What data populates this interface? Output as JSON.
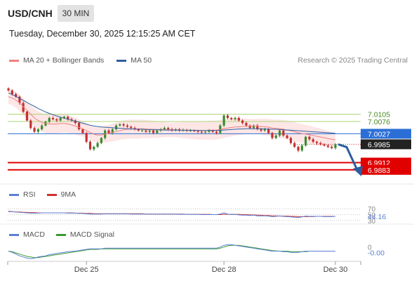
{
  "header": {
    "symbol": "USD/CNH",
    "timeframe": "30 MIN",
    "datetime": "Tuesday, December 30, 2025 12:15:25 AM CET"
  },
  "legend": {
    "ma20": "MA 20 + Bollinger Bands",
    "ma50": "MA 50",
    "credit": "Research © 2025 Trading Central",
    "rsi": "RSI",
    "rsi_ma": "9MA",
    "macd": "MACD",
    "macd_signal": "MACD Signal"
  },
  "colors": {
    "up": "#3a8a2e",
    "down": "#c23030",
    "ma20": "#f08080",
    "ma50": "#2f5fa0",
    "band": "#fde2e2",
    "level_green": "#b8d98a",
    "level_red": "#e00000",
    "pivot": "#2b6fd6",
    "rsi": "#5a7fd4",
    "rsi_ma": "#d03030",
    "macd": "#5a7fd4",
    "macd_signal": "#3a9a2e",
    "arrow": "#2b5ea0"
  },
  "chart_data": [
    {
      "type": "candlestick",
      "panel": "price",
      "x_ticks": [
        "Dec 25",
        "Dec 28",
        "Dec 30"
      ],
      "ylim": [
        6.986,
        7.023
      ],
      "levels": [
        {
          "value": 7.0105,
          "label": "7.0105",
          "kind": "resistance"
        },
        {
          "value": 7.0076,
          "label": "7.0076",
          "kind": "resistance"
        },
        {
          "value": 7.0027,
          "label": "7.0027",
          "kind": "pivot"
        },
        {
          "value": 6.9985,
          "label": "6.9985",
          "kind": "last"
        },
        {
          "value": 6.9912,
          "label": "6.9912",
          "kind": "support"
        },
        {
          "value": 6.9883,
          "label": "6.9883",
          "kind": "support"
        }
      ],
      "close": [
        7.02,
        7.0185,
        7.0175,
        7.015,
        7.0115,
        7.008,
        7.005,
        7.0035,
        7.0045,
        7.006,
        7.0075,
        7.009,
        7.0085,
        7.008,
        7.009,
        7.0095,
        7.0085,
        7.008,
        7.007,
        7.0045,
        7.003,
        6.9995,
        6.9965,
        6.9975,
        6.999,
        7.001,
        7.004,
        7.003,
        7.0045,
        7.006,
        7.0065,
        7.006,
        7.0055,
        7.005,
        7.0045,
        7.004,
        7.004,
        7.0035,
        7.004,
        7.003,
        7.004,
        7.0045,
        7.005,
        7.0045,
        7.004,
        7.0045,
        7.004,
        7.0042,
        7.004,
        7.004,
        7.0038,
        7.0035,
        7.0032,
        7.0035,
        7.004,
        7.0035,
        7.003,
        7.006,
        7.01,
        7.009,
        7.0085,
        7.009,
        7.008,
        7.007,
        7.006,
        7.005,
        7.006,
        7.0045,
        7.004,
        7.0045,
        7.003,
        7.001,
        7.002,
        7.004,
        7.002,
        7.001,
        6.999,
        6.9975,
        6.996,
        6.998,
        7.0015,
        7.0005,
        6.9995,
        6.999,
        6.9985,
        6.998,
        6.9975,
        6.997,
        6.9985
      ],
      "ma20": [
        7.0175,
        7.017,
        7.0162,
        7.015,
        7.0135,
        7.012,
        7.0105,
        7.009,
        7.008,
        7.0072,
        7.0068,
        7.0066,
        7.0066,
        7.0066,
        7.0068,
        7.0068,
        7.0066,
        7.0062,
        7.0058,
        7.0052,
        7.0047,
        7.004,
        7.0032,
        7.0025,
        7.0022,
        7.0022,
        7.0026,
        7.0028,
        7.0032,
        7.0036,
        7.004,
        7.0043,
        7.0045,
        7.0046,
        7.0046,
        7.0046,
        7.0047,
        7.0046,
        7.0045,
        7.0045,
        7.0044,
        7.0044,
        7.0044,
        7.0043,
        7.0043,
        7.0043,
        7.0042,
        7.0042,
        7.0042,
        7.0041,
        7.0041,
        7.004,
        7.004,
        7.004,
        7.0041,
        7.0041,
        7.0042,
        7.0044,
        7.0047,
        7.005,
        7.0052,
        7.0054,
        7.0055,
        7.0056,
        7.0057,
        7.0057,
        7.0058,
        7.0057,
        7.0056,
        7.0055,
        7.0053,
        7.005,
        7.0048,
        7.0047,
        7.0045,
        7.0042,
        7.0039,
        7.0035,
        7.0031,
        7.0028,
        7.0026,
        7.0023,
        7.002,
        7.0017,
        7.0014,
        7.0011,
        7.0008,
        7.0005,
        7.0002
      ],
      "ma50": [
        7.019,
        7.0184,
        7.0176,
        7.0168,
        7.016,
        7.0152,
        7.0144,
        7.0136,
        7.0128,
        7.0121,
        7.0114,
        7.0108,
        7.0103,
        7.0098,
        7.0093,
        7.0089,
        7.0085,
        7.0081,
        7.0077,
        7.0073,
        7.0069,
        7.0065,
        7.0061,
        7.0058,
        7.0056,
        7.0054,
        7.0053,
        7.0052,
        7.0051,
        7.005,
        7.0049,
        7.0048,
        7.0047,
        7.0046,
        7.0046,
        7.0045,
        7.0045,
        7.0044,
        7.0044,
        7.0043,
        7.0043,
        7.0043,
        7.0042,
        7.0042,
        7.0042,
        7.0042,
        7.0041,
        7.0041,
        7.0041,
        7.0041,
        7.0041,
        7.004,
        7.004,
        7.004,
        7.004,
        7.004,
        7.004,
        7.0041,
        7.0042,
        7.0043,
        7.0044,
        7.0045,
        7.0046,
        7.0046,
        7.0047,
        7.0047,
        7.0047,
        7.0047,
        7.0047,
        7.0046,
        7.0046,
        7.0045,
        7.0045,
        7.0044,
        7.0043,
        7.0042,
        7.0041,
        7.004,
        7.0039,
        7.0038,
        7.0037,
        7.0036,
        7.0035,
        7.0034,
        7.0033,
        7.0032,
        7.0031,
        7.003,
        7.0029
      ]
    },
    {
      "type": "line",
      "panel": "rsi",
      "levels": [
        70,
        50,
        30
      ],
      "last_value": "44.16",
      "series": [
        {
          "name": "RSI",
          "values": [
            62,
            60,
            59,
            58,
            57,
            56,
            55,
            55,
            55,
            56,
            56,
            56,
            56,
            56,
            56,
            56,
            55,
            55,
            55,
            54,
            54,
            53,
            52,
            52,
            52,
            52,
            53,
            53,
            53,
            53,
            53,
            53,
            53,
            52,
            52,
            52,
            52,
            52,
            52,
            52,
            52,
            52,
            52,
            52,
            52,
            52,
            51,
            51,
            51,
            51,
            51,
            51,
            50,
            50,
            50,
            50,
            50,
            52,
            56,
            52,
            50,
            51,
            49,
            48,
            48,
            47,
            48,
            46,
            46,
            46,
            45,
            43,
            44,
            46,
            44,
            43,
            42,
            41,
            40,
            42,
            45,
            44,
            44,
            44,
            44,
            43,
            43,
            43,
            44
          ]
        },
        {
          "name": "9MA",
          "values": [
            60,
            60,
            59,
            59,
            58,
            58,
            57,
            57,
            56,
            56,
            56,
            56,
            56,
            56,
            56,
            56,
            56,
            56,
            55,
            55,
            55,
            54,
            54,
            53,
            53,
            53,
            53,
            53,
            53,
            53,
            53,
            53,
            53,
            53,
            53,
            53,
            53,
            52,
            52,
            52,
            52,
            52,
            52,
            52,
            52,
            52,
            52,
            52,
            51,
            51,
            51,
            51,
            51,
            51,
            51,
            50,
            50,
            50,
            51,
            51,
            51,
            51,
            51,
            50,
            50,
            49,
            49,
            48,
            48,
            47,
            47,
            46,
            46,
            45,
            45,
            45,
            44,
            44,
            43,
            43,
            43,
            43,
            43,
            44,
            44,
            44,
            44,
            44,
            44
          ]
        }
      ]
    },
    {
      "type": "line",
      "panel": "macd",
      "levels": [
        0
      ],
      "last_value": "-0.00",
      "series": [
        {
          "name": "MACD",
          "values": [
            0.0,
            -0.2,
            -0.5,
            -0.8,
            -1.0,
            -1.2,
            -1.3,
            -1.2,
            -1.0,
            -0.9,
            -0.8,
            -0.6,
            -0.5,
            -0.4,
            -0.3,
            -0.2,
            -0.1,
            -0.05,
            0,
            0.1,
            0.2,
            0.3,
            0.4,
            0.4,
            0.4,
            0.4,
            0.5,
            0.5,
            0.5,
            0.5,
            0.5,
            0.5,
            0.5,
            0.5,
            0.5,
            0.5,
            0.5,
            0.5,
            0.5,
            0.5,
            0.5,
            0.5,
            0.5,
            0.5,
            0.5,
            0.5,
            0.5,
            0.5,
            0.5,
            0.5,
            0.5,
            0.5,
            0.5,
            0.5,
            0.5,
            0.5,
            0.5,
            0.7,
            1.0,
            1.1,
            1.1,
            1.0,
            0.9,
            0.8,
            0.7,
            0.6,
            0.5,
            0.4,
            0.3,
            0.2,
            0.1,
            0.0,
            0.0,
            0.0,
            -0.1,
            -0.1,
            -0.2,
            -0.2,
            -0.2,
            -0.1,
            0.0,
            0.0,
            0.0,
            0.0,
            0.0,
            0.0,
            0.0,
            0.0,
            0.0
          ]
        },
        {
          "name": "MACD Signal",
          "values": [
            0.0,
            -0.1,
            -0.3,
            -0.5,
            -0.7,
            -0.9,
            -1.0,
            -1.1,
            -1.1,
            -1.0,
            -0.9,
            -0.8,
            -0.7,
            -0.6,
            -0.5,
            -0.4,
            -0.3,
            -0.2,
            -0.1,
            0.0,
            0.1,
            0.2,
            0.3,
            0.3,
            0.3,
            0.4,
            0.4,
            0.4,
            0.4,
            0.4,
            0.4,
            0.4,
            0.4,
            0.4,
            0.4,
            0.4,
            0.4,
            0.4,
            0.4,
            0.4,
            0.4,
            0.4,
            0.4,
            0.4,
            0.4,
            0.4,
            0.4,
            0.4,
            0.4,
            0.4,
            0.4,
            0.4,
            0.4,
            0.4,
            0.4,
            0.4,
            0.4,
            0.5,
            0.7,
            0.9,
            1.0,
            1.0,
            1.0,
            0.9,
            0.8,
            0.7,
            0.6,
            0.5,
            0.4,
            0.3,
            0.2,
            0.1,
            0.05,
            0.0,
            0.0,
            0.0,
            -0.1,
            -0.1,
            -0.1,
            -0.1,
            -0.1,
            0.0,
            0.0,
            0.0,
            0.0,
            0.0,
            0.0,
            0.0,
            0.0
          ]
        }
      ]
    }
  ]
}
